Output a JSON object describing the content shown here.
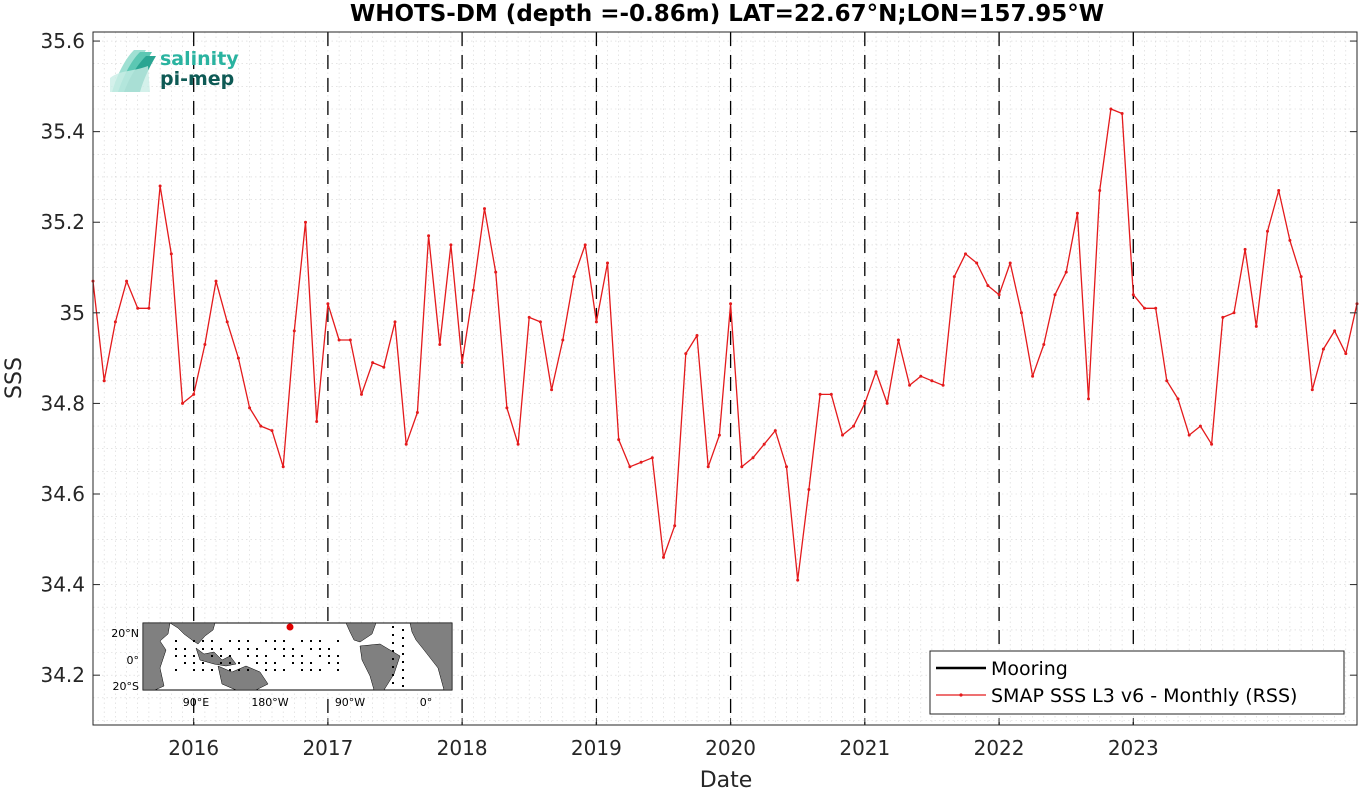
{
  "chart_data": {
    "type": "line",
    "title": "WHOTS-DM (depth =-0.86m) LAT=22.67°N;LON=157.95°W",
    "xlabel": "Date",
    "ylabel": "SSS",
    "ylim": [
      34.09,
      35.62
    ],
    "y_ticks": [
      "34.2",
      "34.4",
      "34.6",
      "34.8",
      "35",
      "35.2",
      "35.4",
      "35.6"
    ],
    "x_ticks": [
      "2016",
      "2017",
      "2018",
      "2019",
      "2020",
      "2021",
      "2022",
      "2023"
    ],
    "x_range": [
      "2015-04",
      "2024-09"
    ],
    "year_boundaries": [
      "2016-01",
      "2017-01",
      "2018-01",
      "2019-01",
      "2020-01",
      "2021-01",
      "2022-01",
      "2023-01"
    ],
    "grid": true,
    "legend_position": "bottom-right",
    "legend": [
      {
        "name": "Mooring",
        "color": "#000000"
      },
      {
        "name": "SMAP SSS L3 v6 - Monthly (RSS)",
        "color": "#e41a1c"
      }
    ],
    "series": [
      {
        "name": "SMAP SSS L3 v6 - Monthly (RSS)",
        "color": "#e41a1c",
        "dates": [
          "2015-04",
          "2015-05",
          "2015-06",
          "2015-07",
          "2015-08",
          "2015-09",
          "2015-10",
          "2015-11",
          "2015-12",
          "2016-01",
          "2016-02",
          "2016-03",
          "2016-04",
          "2016-05",
          "2016-06",
          "2016-07",
          "2016-08",
          "2016-09",
          "2016-10",
          "2016-11",
          "2016-12",
          "2017-01",
          "2017-02",
          "2017-03",
          "2017-04",
          "2017-05",
          "2017-06",
          "2017-07",
          "2017-08",
          "2017-09",
          "2017-10",
          "2017-11",
          "2017-12",
          "2018-01",
          "2018-02",
          "2018-03",
          "2018-04",
          "2018-05",
          "2018-06",
          "2018-07",
          "2018-08",
          "2018-09",
          "2018-10",
          "2018-11",
          "2018-12",
          "2019-01",
          "2019-02",
          "2019-03",
          "2019-04",
          "2019-05",
          "2019-06",
          "2019-07",
          "2019-08",
          "2019-09",
          "2019-10",
          "2019-11",
          "2019-12",
          "2020-01",
          "2020-02",
          "2020-03",
          "2020-04",
          "2020-05",
          "2020-06",
          "2020-07",
          "2020-08",
          "2020-09",
          "2020-10",
          "2020-11",
          "2020-12",
          "2021-01",
          "2021-02",
          "2021-03",
          "2021-04",
          "2021-05",
          "2021-06",
          "2021-07",
          "2021-08",
          "2021-09",
          "2021-10",
          "2021-11",
          "2021-12",
          "2022-01",
          "2022-02",
          "2022-03",
          "2022-04",
          "2022-05",
          "2022-06",
          "2022-07",
          "2022-08",
          "2022-09",
          "2022-10",
          "2022-11",
          "2022-12",
          "2023-01",
          "2023-02",
          "2023-03",
          "2023-04",
          "2023-05",
          "2023-06",
          "2023-07",
          "2023-08",
          "2023-09",
          "2023-10",
          "2023-11",
          "2023-12",
          "2024-01",
          "2024-02",
          "2024-03",
          "2024-04",
          "2024-05",
          "2024-06",
          "2024-07",
          "2024-08",
          "2024-09"
        ],
        "values": [
          35.07,
          34.85,
          34.98,
          35.07,
          35.01,
          35.01,
          35.28,
          35.13,
          34.8,
          34.82,
          34.93,
          35.07,
          34.98,
          34.9,
          34.79,
          34.75,
          34.74,
          34.66,
          34.96,
          35.2,
          34.76,
          35.02,
          34.94,
          34.94,
          34.82,
          34.89,
          34.88,
          34.98,
          34.71,
          34.78,
          35.17,
          34.93,
          35.15,
          34.89,
          35.05,
          35.23,
          35.09,
          34.79,
          34.71,
          34.99,
          34.98,
          34.83,
          34.94,
          35.08,
          35.15,
          34.98,
          35.11,
          34.72,
          34.66,
          34.67,
          34.68,
          34.46,
          34.53,
          34.91,
          34.95,
          34.66,
          34.73,
          35.02,
          34.66,
          34.68,
          34.71,
          34.74,
          34.66,
          34.41,
          34.61,
          34.82,
          34.82,
          34.73,
          34.75,
          34.8,
          34.87,
          34.8,
          34.94,
          34.84,
          34.86,
          34.85,
          34.84,
          35.08,
          35.13,
          35.11,
          35.06,
          35.04,
          35.11,
          35.0,
          34.86,
          34.93,
          35.04,
          35.09,
          35.22,
          34.81,
          35.27,
          35.45,
          35.44,
          35.04,
          35.01,
          35.01,
          34.85,
          34.81,
          34.73,
          34.75,
          34.71,
          34.99,
          35.0,
          35.14,
          34.97,
          35.18,
          35.27,
          35.16,
          35.08,
          34.83,
          34.92,
          34.96,
          34.91,
          35.02
        ]
      }
    ]
  },
  "logo": {
    "line1": "salinity",
    "line2": "pi-mep",
    "color1": "#2ab3a0",
    "color2": "#0e5a55"
  },
  "inset_map": {
    "y_labels": [
      "20°N",
      "0°",
      "20°S"
    ],
    "x_labels": [
      "90°E",
      "180°W",
      "90°W",
      "0°"
    ],
    "ocean_color": "#ffffff",
    "land_color": "#808080",
    "marker_color": "#e00000"
  }
}
